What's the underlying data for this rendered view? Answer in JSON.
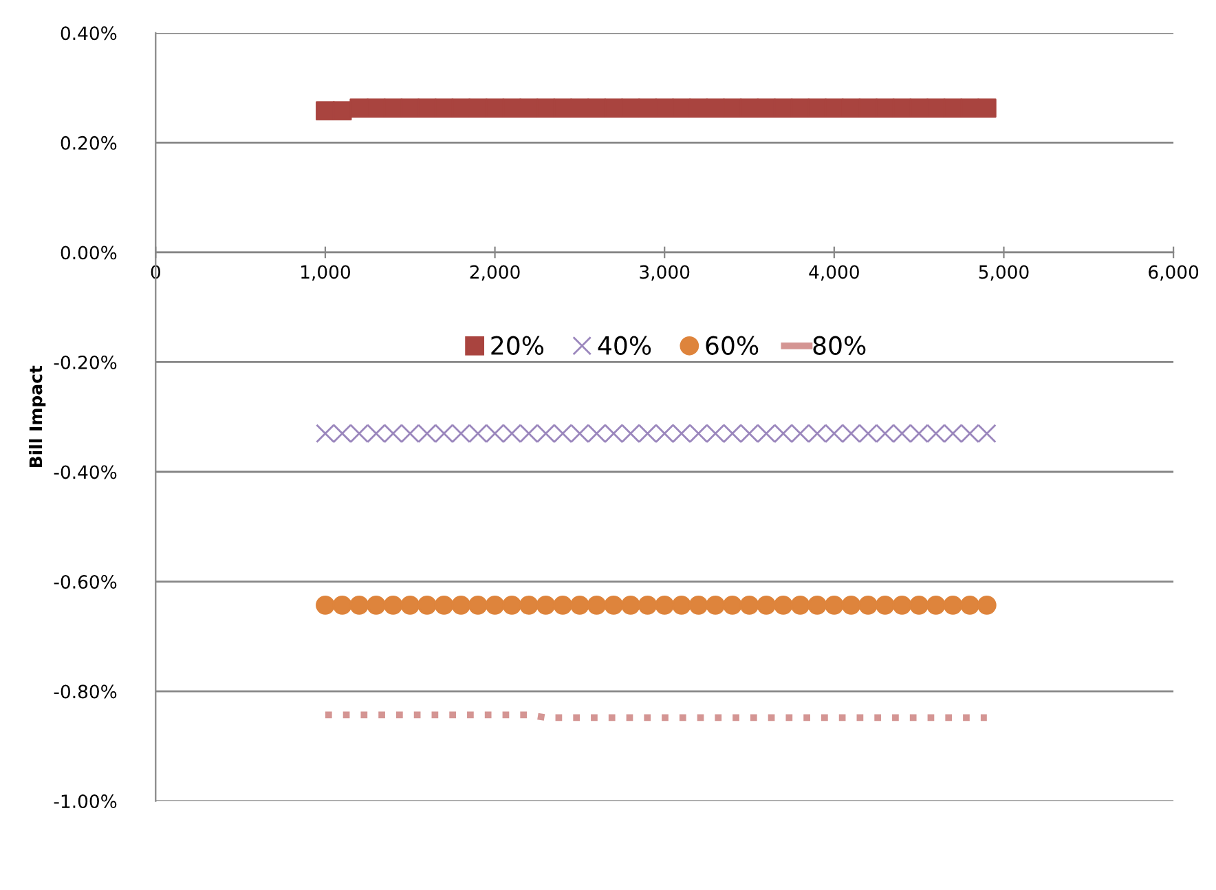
{
  "chart_data": {
    "type": "scatter",
    "ylabel": "Bill Impact",
    "x": [
      1000,
      1100,
      1200,
      1300,
      1400,
      1500,
      1600,
      1700,
      1800,
      1900,
      2000,
      2100,
      2200,
      2300,
      2400,
      2500,
      2600,
      2700,
      2800,
      2900,
      3000,
      3100,
      3200,
      3300,
      3400,
      3500,
      3600,
      3700,
      3800,
      3900,
      4000,
      4100,
      4200,
      4300,
      4400,
      4500,
      4600,
      4700,
      4800,
      4900
    ],
    "series": [
      {
        "name": "20%",
        "color": "#a9443f",
        "marker": "square",
        "values": [
          0.258,
          0.258,
          0.263,
          0.263,
          0.263,
          0.263,
          0.263,
          0.263,
          0.263,
          0.263,
          0.263,
          0.263,
          0.263,
          0.263,
          0.263,
          0.263,
          0.263,
          0.263,
          0.263,
          0.263,
          0.263,
          0.263,
          0.263,
          0.263,
          0.263,
          0.263,
          0.263,
          0.263,
          0.263,
          0.263,
          0.263,
          0.263,
          0.263,
          0.263,
          0.263,
          0.263,
          0.263,
          0.263,
          0.263,
          0.263
        ]
      },
      {
        "name": "40%",
        "color": "#9b87bd",
        "marker": "cross",
        "values": [
          -0.33,
          -0.33,
          -0.33,
          -0.33,
          -0.33,
          -0.33,
          -0.33,
          -0.33,
          -0.33,
          -0.33,
          -0.33,
          -0.33,
          -0.33,
          -0.33,
          -0.33,
          -0.33,
          -0.33,
          -0.33,
          -0.33,
          -0.33,
          -0.33,
          -0.33,
          -0.33,
          -0.33,
          -0.33,
          -0.33,
          -0.33,
          -0.33,
          -0.33,
          -0.33,
          -0.33,
          -0.33,
          -0.33,
          -0.33,
          -0.33,
          -0.33,
          -0.33,
          -0.33,
          -0.33,
          -0.33
        ]
      },
      {
        "name": "60%",
        "color": "#de843c",
        "marker": "circle",
        "values": [
          -0.643,
          -0.643,
          -0.643,
          -0.643,
          -0.643,
          -0.643,
          -0.643,
          -0.643,
          -0.643,
          -0.643,
          -0.643,
          -0.643,
          -0.643,
          -0.643,
          -0.643,
          -0.643,
          -0.643,
          -0.643,
          -0.643,
          -0.643,
          -0.643,
          -0.643,
          -0.643,
          -0.643,
          -0.643,
          -0.643,
          -0.643,
          -0.643,
          -0.643,
          -0.643,
          -0.643,
          -0.643,
          -0.643,
          -0.643,
          -0.643,
          -0.643,
          -0.643,
          -0.643,
          -0.643,
          -0.643
        ]
      },
      {
        "name": "80%",
        "color": "#d49593",
        "type": "line",
        "marker": "none",
        "line_style": "dotted",
        "values": [
          -0.843,
          -0.843,
          -0.843,
          -0.843,
          -0.843,
          -0.843,
          -0.843,
          -0.843,
          -0.843,
          -0.843,
          -0.843,
          -0.843,
          -0.843,
          -0.848,
          -0.848,
          -0.848,
          -0.848,
          -0.848,
          -0.848,
          -0.848,
          -0.848,
          -0.848,
          -0.848,
          -0.848,
          -0.848,
          -0.848,
          -0.848,
          -0.848,
          -0.848,
          -0.848,
          -0.848,
          -0.848,
          -0.848,
          -0.848,
          -0.848,
          -0.848,
          -0.848,
          -0.848,
          -0.848,
          -0.848
        ]
      }
    ],
    "xlim": [
      0,
      6000
    ],
    "xticks": [
      {
        "value": 0,
        "label": "0"
      },
      {
        "value": 1000,
        "label": "1,000"
      },
      {
        "value": 2000,
        "label": "2,000"
      },
      {
        "value": 3000,
        "label": "3,000"
      },
      {
        "value": 4000,
        "label": "4,000"
      },
      {
        "value": 5000,
        "label": "5,000"
      },
      {
        "value": 6000,
        "label": "6,000"
      }
    ],
    "ylim": [
      -1.0,
      0.4
    ],
    "yticks": [
      {
        "value": -1.0,
        "label": "-1.00%"
      },
      {
        "value": -0.8,
        "label": "-0.80%"
      },
      {
        "value": -0.6,
        "label": "-0.60%"
      },
      {
        "value": -0.4,
        "label": "-0.40%"
      },
      {
        "value": -0.2,
        "label": "-0.20%"
      },
      {
        "value": 0.0,
        "label": "0.00%"
      },
      {
        "value": 0.2,
        "label": "0.20%"
      },
      {
        "value": 0.4,
        "label": "0.40%"
      }
    ],
    "grid": "y",
    "legend": "top"
  }
}
